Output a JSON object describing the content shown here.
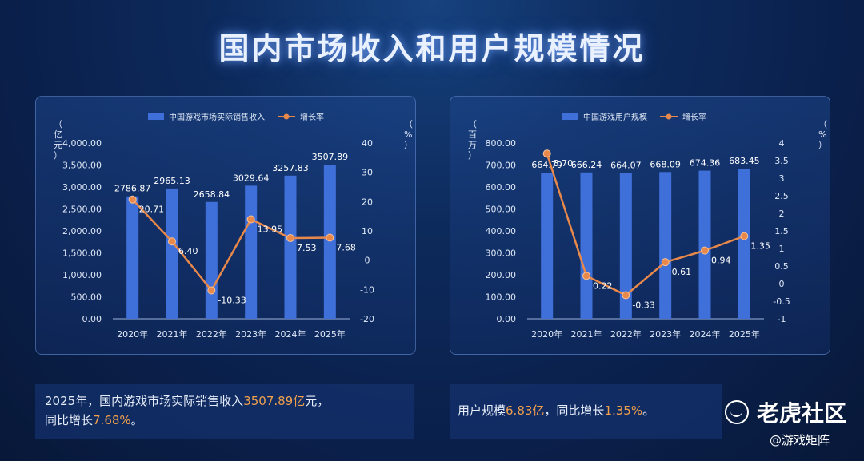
{
  "title": "国内市场收入和用户规模情况",
  "charts": [
    {
      "type": "bar+line",
      "legend_bar": "中国游戏市场实际销售收入",
      "legend_line": "增长率",
      "ylabel_left": "（亿元）",
      "ylabel_right": "（%）",
      "categories": [
        "2020年",
        "2021年",
        "2022年",
        "2023年",
        "2024年",
        "2025年"
      ],
      "bar_values": [
        2786.87,
        2965.13,
        2658.84,
        3029.64,
        3257.83,
        3507.89
      ],
      "bar_labels": [
        "2786.87",
        "2965.13",
        "2658.84",
        "3029.64",
        "3257.83",
        "3507.89"
      ],
      "line_values": [
        20.71,
        6.4,
        -10.33,
        13.95,
        7.53,
        7.68
      ],
      "line_labels": [
        "20.71",
        "6.40",
        "-10.33",
        "13.95",
        "7.53",
        "7.68"
      ],
      "ylim_left": [
        0,
        4000
      ],
      "ylim_right": [
        -20,
        40
      ],
      "left_ticks": [
        "0.00",
        "500.00",
        "1,000.00",
        "1,500.00",
        "2,000.00",
        "2,500.00",
        "3,000.00",
        "3,500.00",
        "4,000.00"
      ],
      "left_tick_values": [
        0,
        500,
        1000,
        1500,
        2000,
        2500,
        3000,
        3500,
        4000
      ],
      "right_ticks": [
        "-20",
        "-10",
        "0",
        "10",
        "20",
        "30",
        "40"
      ],
      "right_tick_values": [
        -20,
        -10,
        0,
        10,
        20,
        30,
        40
      ]
    },
    {
      "type": "bar+line",
      "legend_bar": "中国游戏用户规模",
      "legend_line": "增长率",
      "ylabel_left": "（百万）",
      "ylabel_right": "（%）",
      "categories": [
        "2020年",
        "2021年",
        "2022年",
        "2023年",
        "2024年",
        "2025年"
      ],
      "bar_values": [
        664.79,
        666.24,
        664.07,
        668.09,
        674.36,
        683.45
      ],
      "bar_labels": [
        "664.79",
        "666.24",
        "664.07",
        "668.09",
        "674.36",
        "683.45"
      ],
      "line_values": [
        3.7,
        0.22,
        -0.33,
        0.61,
        0.94,
        1.35
      ],
      "line_labels": [
        "3.70",
        "0.22",
        "-0.33",
        "0.61",
        "0.94",
        "1.35"
      ],
      "ylim_left": [
        0,
        800
      ],
      "ylim_right": [
        -1,
        4
      ],
      "left_ticks": [
        "0.00",
        "100.00",
        "200.00",
        "300.00",
        "400.00",
        "500.00",
        "600.00",
        "700.00",
        "800.00"
      ],
      "left_tick_values": [
        0,
        100,
        200,
        300,
        400,
        500,
        600,
        700,
        800
      ],
      "right_ticks": [
        "-1",
        "-0.5",
        "0",
        "0.5",
        "1",
        "1.5",
        "2",
        "2.5",
        "3",
        "3.5",
        "4"
      ],
      "right_tick_values": [
        -1,
        -0.5,
        0,
        0.5,
        1,
        1.5,
        2,
        2.5,
        3,
        3.5,
        4
      ]
    }
  ],
  "summary1": {
    "a": "2025年，国内游戏市场实际销售收入",
    "b": "3507.89亿",
    "c": "元，",
    "d": "同比增长",
    "e": "7.68%",
    "f": "。"
  },
  "summary2": {
    "a": "用户规模",
    "b": "6.83亿",
    "c": "，同比增长",
    "d": "1.35%",
    "e": "。"
  },
  "brand": "老虎社区",
  "source": "@游戏矩阵",
  "colors": {
    "bar": "#3f6fd8",
    "line": "#e8884a",
    "highlight": "#f0a04b"
  }
}
